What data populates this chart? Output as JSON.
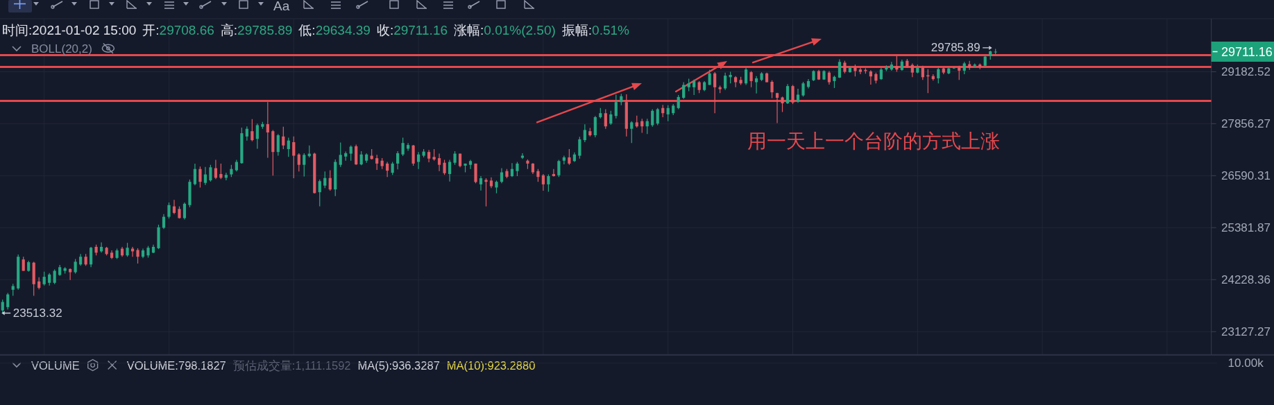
{
  "chart_data": [
    {
      "type": "candlestick",
      "categories": [
        null,
        null,
        null,
        null,
        null,
        null,
        null,
        null,
        null,
        null,
        null,
        null,
        null,
        null,
        null,
        null,
        null,
        null,
        null,
        null,
        null,
        null,
        null,
        null,
        null,
        null,
        null,
        null,
        null,
        null,
        null,
        null,
        null,
        null,
        null,
        null,
        null,
        null,
        null,
        null,
        null,
        null,
        null,
        null,
        null,
        null,
        null,
        null,
        null,
        null,
        null,
        null,
        null,
        null,
        null,
        null,
        null,
        null,
        null,
        null,
        null,
        null,
        null,
        null,
        null,
        null,
        null,
        null,
        null,
        null,
        null,
        null,
        null,
        null,
        null,
        null,
        null,
        null,
        null,
        null,
        null,
        null,
        null,
        null,
        null,
        null,
        null,
        null,
        null,
        null,
        null,
        null,
        null,
        null,
        null,
        null,
        null,
        null,
        null,
        null,
        null,
        null,
        null,
        null,
        null,
        null,
        null,
        null,
        null,
        null,
        null,
        null,
        null,
        null,
        null,
        null,
        null,
        null,
        null,
        null,
        null,
        null,
        null,
        null,
        null,
        null,
        null,
        null,
        null,
        null,
        null,
        null,
        null,
        null,
        null,
        null,
        null,
        null,
        null,
        null,
        null,
        null,
        null,
        null,
        null,
        null,
        null,
        null,
        null,
        null,
        null,
        null,
        null,
        null,
        null,
        null,
        null,
        null,
        null,
        null,
        null,
        null,
        null,
        null,
        null,
        null,
        null,
        null,
        null,
        null,
        null,
        null,
        null,
        null,
        null,
        null,
        null,
        null,
        null,
        null,
        null,
        null,
        null,
        null,
        null,
        null,
        null,
        null,
        null,
        null,
        null,
        null,
        null,
        null,
        null,
        null,
        null,
        null,
        null,
        null,
        null,
        null,
        null,
        null,
        null,
        null,
        null,
        null,
        null,
        null,
        null,
        null,
        null,
        null,
        null,
        null,
        null,
        null,
        null,
        null,
        null,
        null,
        null,
        null,
        null,
        null,
        null,
        null,
        null,
        null,
        null,
        null,
        null
      ],
      "ohlc": [
        [
          23570,
          23800,
          23513.32,
          23750
        ],
        [
          23640,
          23940,
          23590,
          23910
        ],
        [
          24010,
          24140,
          23880,
          24090
        ],
        [
          24040,
          24780,
          24010,
          24730
        ],
        [
          24670,
          24730,
          24420,
          24420
        ],
        [
          24420,
          24640,
          24400,
          24610
        ],
        [
          24600,
          24620,
          23880,
          24130
        ],
        [
          24190,
          24280,
          24020,
          24050
        ],
        [
          24130,
          24400,
          24100,
          24290
        ],
        [
          24160,
          24370,
          24100,
          24340
        ],
        [
          24160,
          24450,
          24130,
          24420
        ],
        [
          24330,
          24550,
          24310,
          24500
        ],
        [
          24420,
          24500,
          24360,
          24475
        ],
        [
          24460,
          24475,
          24220,
          24390
        ],
        [
          24390,
          24680,
          24360,
          24620
        ],
        [
          24560,
          24790,
          24530,
          24730
        ],
        [
          24730,
          24790,
          24530,
          24560
        ],
        [
          24560,
          24950,
          24500,
          24930
        ],
        [
          24950,
          25000,
          24760,
          24820
        ],
        [
          24850,
          25050,
          24820,
          24950
        ],
        [
          24930,
          24950,
          24760,
          24790
        ],
        [
          24820,
          24870,
          24680,
          24705
        ],
        [
          24705,
          24910,
          24680,
          24870
        ],
        [
          24910,
          24950,
          24730,
          24760
        ],
        [
          24760,
          25040,
          24730,
          24930
        ],
        [
          24910,
          24950,
          24730,
          24850
        ],
        [
          24880,
          24920,
          24580,
          24730
        ],
        [
          24730,
          24910,
          24700,
          24870
        ],
        [
          24760,
          24970,
          24710,
          24930
        ],
        [
          24820,
          25000,
          24810,
          24950
        ],
        [
          24920,
          25450,
          24900,
          25390
        ],
        [
          25380,
          25690,
          25350,
          25630
        ],
        [
          25630,
          25960,
          25590,
          25900
        ],
        [
          25870,
          26020,
          25690,
          25720
        ],
        [
          25810,
          25870,
          25590,
          25600
        ],
        [
          25600,
          25960,
          25570,
          25930
        ],
        [
          25900,
          26500,
          25850,
          26445
        ],
        [
          26390,
          26880,
          26360,
          26750
        ],
        [
          26750,
          26810,
          26310,
          26445
        ],
        [
          26420,
          26800,
          26370,
          26620
        ],
        [
          26480,
          26850,
          26450,
          26790
        ],
        [
          26770,
          26970,
          26510,
          26540
        ],
        [
          26630,
          26880,
          26510,
          26540
        ],
        [
          26540,
          26660,
          26480,
          26610
        ],
        [
          26620,
          26850,
          26560,
          26750
        ],
        [
          26720,
          26970,
          26690,
          26920
        ],
        [
          26890,
          27760,
          26880,
          27620
        ],
        [
          27540,
          27790,
          27440,
          27730
        ],
        [
          27670,
          27970,
          27420,
          27450
        ],
        [
          27480,
          27860,
          27240,
          27820
        ],
        [
          27780,
          27900,
          27730,
          27845
        ],
        [
          27845,
          28400,
          27020,
          27640
        ],
        [
          27670,
          27700,
          26590,
          27160
        ],
        [
          27160,
          27600,
          27070,
          27570
        ],
        [
          27540,
          27780,
          27230,
          27320
        ],
        [
          27230,
          27510,
          27040,
          27440
        ],
        [
          27400,
          27540,
          26530,
          27070
        ],
        [
          27100,
          27130,
          26690,
          26850
        ],
        [
          26850,
          27130,
          26570,
          27090
        ],
        [
          27060,
          27320,
          27030,
          27120
        ],
        [
          27120,
          27140,
          26170,
          26180
        ],
        [
          26200,
          26500,
          25870,
          26460
        ],
        [
          26355,
          26690,
          26295,
          26535
        ],
        [
          26535,
          26720,
          26235,
          26265
        ],
        [
          26265,
          26980,
          26110,
          26920
        ],
        [
          26850,
          27390,
          26800,
          27090
        ],
        [
          27050,
          27170,
          26950,
          27130
        ],
        [
          27120,
          27320,
          26950,
          27290
        ],
        [
          27300,
          27340,
          26850,
          26860
        ],
        [
          26860,
          27180,
          26840,
          27100
        ],
        [
          26950,
          27130,
          26900,
          27100
        ],
        [
          27070,
          27230,
          26980,
          26990
        ],
        [
          27010,
          27090,
          26730,
          26880
        ],
        [
          26950,
          27010,
          26750,
          26820
        ],
        [
          26880,
          26920,
          26560,
          26710
        ],
        [
          26660,
          26920,
          26610,
          26880
        ],
        [
          26880,
          27180,
          26740,
          27130
        ],
        [
          27100,
          27510,
          27060,
          27380
        ],
        [
          27240,
          27380,
          27190,
          27330
        ],
        [
          27320,
          27330,
          26830,
          26880
        ],
        [
          26920,
          27160,
          26750,
          27100
        ],
        [
          27070,
          27230,
          27030,
          27170
        ],
        [
          27160,
          27210,
          26910,
          27000
        ],
        [
          27040,
          27230,
          26950,
          26980
        ],
        [
          27010,
          27120,
          26700,
          26850
        ],
        [
          26900,
          26970,
          26610,
          26650
        ],
        [
          26630,
          26970,
          26450,
          26920
        ],
        [
          26900,
          27180,
          26850,
          27120
        ],
        [
          27120,
          27120,
          26790,
          26820
        ],
        [
          26830,
          26880,
          26670,
          26880
        ],
        [
          26850,
          26970,
          26750,
          26940
        ],
        [
          26880,
          26880,
          26410,
          26440
        ],
        [
          26385,
          26580,
          26240,
          26530
        ],
        [
          26490,
          26530,
          25870,
          26445
        ],
        [
          26475,
          26550,
          26295,
          26340
        ],
        [
          26310,
          26475,
          26175,
          26445
        ],
        [
          26445,
          26770,
          26410,
          26670
        ],
        [
          26700,
          26750,
          26530,
          26565
        ],
        [
          26580,
          26890,
          26560,
          26750
        ],
        [
          26700,
          26920,
          26580,
          26880
        ],
        [
          27020,
          27130,
          26990,
          27070
        ],
        [
          26950,
          26980,
          26750,
          26880
        ],
        [
          26880,
          26890,
          26630,
          26670
        ],
        [
          26700,
          26750,
          26445,
          26560
        ],
        [
          26600,
          26630,
          26235,
          26385
        ],
        [
          26385,
          26620,
          26210,
          26580
        ],
        [
          26630,
          26750,
          26570,
          26580
        ],
        [
          26600,
          26970,
          26560,
          26940
        ],
        [
          26950,
          27070,
          26860,
          27030
        ],
        [
          27030,
          27230,
          26850,
          26880
        ],
        [
          26940,
          27150,
          26920,
          27100
        ],
        [
          27070,
          27530,
          27000,
          27470
        ],
        [
          27450,
          27840,
          27400,
          27700
        ],
        [
          27670,
          27750,
          27540,
          27570
        ],
        [
          27570,
          28050,
          27520,
          28020
        ],
        [
          28020,
          28250,
          27990,
          28120
        ],
        [
          28120,
          28220,
          27730,
          27790
        ],
        [
          27860,
          28180,
          27830,
          28090
        ],
        [
          28050,
          28590,
          27990,
          28400
        ],
        [
          28400,
          28610,
          28320,
          28550
        ],
        [
          28400,
          28600,
          27540,
          27730
        ],
        [
          27730,
          27920,
          27380,
          27890
        ],
        [
          27890,
          28060,
          27760,
          27790
        ],
        [
          27920,
          27980,
          27630,
          27790
        ],
        [
          27790,
          27980,
          27600,
          27920
        ],
        [
          27820,
          28220,
          27780,
          28180
        ],
        [
          27860,
          28250,
          27820,
          28220
        ],
        [
          28250,
          28330,
          28020,
          28120
        ],
        [
          28090,
          28320,
          27920,
          28250
        ],
        [
          28120,
          28350,
          28070,
          28310
        ],
        [
          28250,
          28580,
          28220,
          28530
        ],
        [
          28510,
          28910,
          28480,
          28840
        ],
        [
          28780,
          29000,
          28680,
          28880
        ],
        [
          28780,
          28980,
          28580,
          28940
        ],
        [
          28910,
          28940,
          28630,
          28710
        ],
        [
          28710,
          28940,
          28680,
          28910
        ],
        [
          28840,
          29230,
          28840,
          29140
        ],
        [
          29140,
          29170,
          28120,
          28780
        ],
        [
          28780,
          28820,
          28630,
          28730
        ],
        [
          28750,
          29160,
          28710,
          29080
        ],
        [
          29040,
          29180,
          28880,
          29100
        ],
        [
          29040,
          29070,
          28780,
          28910
        ],
        [
          28970,
          29050,
          28840,
          28880
        ],
        [
          28880,
          29290,
          28840,
          29240
        ],
        [
          29170,
          29200,
          28780,
          28940
        ],
        [
          28910,
          29070,
          28620,
          29010
        ],
        [
          28970,
          29170,
          28940,
          29140
        ],
        [
          29140,
          29160,
          28910,
          28910
        ],
        [
          28920,
          28960,
          28500,
          28650
        ],
        [
          28630,
          28640,
          27870,
          28510
        ],
        [
          28520,
          28540,
          28150,
          28370
        ],
        [
          28370,
          28860,
          28350,
          28810
        ],
        [
          28810,
          28840,
          28350,
          28390
        ],
        [
          28410,
          28740,
          28380,
          28590
        ],
        [
          28570,
          28920,
          28540,
          28880
        ],
        [
          28790,
          28990,
          28750,
          28940
        ],
        [
          28960,
          29220,
          28940,
          29200
        ],
        [
          29200,
          29230,
          28970,
          28980
        ],
        [
          28980,
          29220,
          28970,
          29200
        ],
        [
          29160,
          29200,
          28850,
          28910
        ],
        [
          28940,
          29080,
          28760,
          29050
        ],
        [
          29030,
          29510,
          29020,
          29440
        ],
        [
          29420,
          29470,
          29140,
          29180
        ],
        [
          29170,
          29320,
          29160,
          29290
        ],
        [
          29290,
          29370,
          29060,
          29200
        ],
        [
          29240,
          29290,
          29120,
          29180
        ],
        [
          29230,
          29270,
          29130,
          29200
        ],
        [
          29190,
          29220,
          28850,
          29060
        ],
        [
          29120,
          29160,
          28880,
          28950
        ],
        [
          28990,
          29280,
          28970,
          29240
        ],
        [
          29240,
          29350,
          29200,
          29290
        ],
        [
          29240,
          29440,
          29210,
          29370
        ],
        [
          29320,
          29600,
          29180,
          29240
        ],
        [
          29230,
          29500,
          29210,
          29450
        ],
        [
          29470,
          29520,
          29280,
          29320
        ],
        [
          29360,
          29400,
          29040,
          29160
        ],
        [
          29160,
          29370,
          29140,
          29290
        ],
        [
          29290,
          29340,
          28970,
          29040
        ],
        [
          29090,
          29250,
          28630,
          29060
        ],
        [
          29070,
          29120,
          28950,
          28990
        ],
        [
          29010,
          29290,
          28880,
          29250
        ],
        [
          29270,
          29290,
          29120,
          29160
        ],
        [
          29140,
          29290,
          29120,
          29270
        ],
        [
          29270,
          29310,
          29260,
          29290
        ],
        [
          29290,
          29340,
          28970,
          29210
        ],
        [
          29210,
          29440,
          29120,
          29400
        ],
        [
          29380,
          29470,
          29230,
          29290
        ],
        [
          29340,
          29400,
          29290,
          29370
        ],
        [
          29370,
          29400,
          29250,
          29310
        ],
        [
          29340,
          29600,
          29320,
          29580
        ],
        [
          29610,
          29740,
          29500,
          29720
        ],
        [
          29708.66,
          29785.89,
          29634.39,
          29711.16
        ],
        null,
        null,
        null,
        null,
        null,
        null,
        null,
        null,
        null,
        null,
        null,
        null,
        null,
        null,
        null,
        null,
        null,
        null,
        null,
        null,
        null,
        null,
        null,
        null,
        null,
        null,
        null,
        null,
        null,
        null,
        null,
        null,
        null,
        null,
        null,
        null,
        null,
        null,
        null,
        null,
        null
      ],
      "colors": [
        "#26a983",
        "#26a983",
        "#26a983",
        "#26a983",
        "#e15b64",
        "#26a983",
        "#e15b64",
        "#e15b64",
        "#26a983",
        "#26a983",
        "#26a983",
        "#26a983",
        "#26a983",
        "#e15b64",
        "#26a983",
        "#26a983",
        "#e15b64",
        "#26a983",
        "#e15b64",
        "#26a983",
        "#e15b64",
        "#e15b64",
        "#26a983",
        "#e15b64",
        "#26a983",
        "#e15b64",
        "#e15b64",
        "#26a983",
        "#26a983",
        "#26a983",
        "#26a983",
        "#26a983",
        "#26a983",
        "#e15b64",
        "#e15b64",
        "#26a983",
        "#26a983",
        "#26a983",
        "#e15b64",
        "#26a983",
        "#26a983",
        "#e15b64",
        "#e15b64",
        "#26a983",
        "#26a983",
        "#26a983",
        "#26a983",
        "#26a983",
        "#e15b64",
        "#26a983",
        "#26a983",
        "#e15b64",
        "#e15b64",
        "#26a983",
        "#e15b64",
        "#26a983",
        "#e15b64",
        "#e15b64",
        "#26a983",
        "#26a983",
        "#e15b64",
        "#26a983",
        "#26a983",
        "#e15b64",
        "#26a983",
        "#26a983",
        "#26a983",
        "#26a983",
        "#e15b64",
        "#26a983",
        "#26a983",
        "#e15b64",
        "#e15b64",
        "#e15b64",
        "#e15b64",
        "#26a983",
        "#26a983",
        "#26a983",
        "#26a983",
        "#e15b64",
        "#26a983",
        "#26a983",
        "#e15b64",
        "#e15b64",
        "#e15b64",
        "#e15b64",
        "#26a983",
        "#26a983",
        "#e15b64",
        "#26a983",
        "#26a983",
        "#e15b64",
        "#26a983",
        "#e15b64",
        "#e15b64",
        "#26a983",
        "#26a983",
        "#e15b64",
        "#26a983",
        "#26a983",
        "#26a983",
        "#e15b64",
        "#e15b64",
        "#e15b64",
        "#e15b64",
        "#26a983",
        "#e15b64",
        "#26a983",
        "#26a983",
        "#e15b64",
        "#26a983",
        "#26a983",
        "#26a983",
        "#e15b64",
        "#26a983",
        "#26a983",
        "#e15b64",
        "#26a983",
        "#26a983",
        "#26a983",
        "#e15b64",
        "#26a983",
        "#e15b64",
        "#e15b64",
        "#26a983",
        "#26a983",
        "#26a983",
        "#e15b64",
        "#26a983",
        "#26a983",
        "#26a983",
        "#26a983",
        "#26a983",
        "#26a983",
        "#e15b64",
        "#26a983",
        "#26a983",
        "#e15b64",
        "#e15b64",
        "#26a983",
        "#26a983",
        "#e15b64",
        "#e15b64",
        "#26a983",
        "#e15b64",
        "#26a983",
        "#26a983",
        "#e15b64",
        "#e15b64",
        "#e15b64",
        "#e15b64",
        "#26a983",
        "#e15b64",
        "#26a983",
        "#26a983",
        "#26a983",
        "#26a983",
        "#e15b64",
        "#26a983",
        "#e15b64",
        "#26a983",
        "#26a983",
        "#e15b64",
        "#26a983",
        "#e15b64",
        "#e15b64",
        "#e15b64",
        "#e15b64",
        "#e15b64",
        "#26a983",
        "#26a983",
        "#26a983",
        "#e15b64",
        "#26a983",
        "#e15b64",
        "#e15b64",
        "#26a983",
        "#e15b64",
        "#e15b64",
        "#e15b64",
        "#26a983",
        "#e15b64",
        "#26a983",
        "#26a983",
        "#e15b64",
        "#26a983",
        "#e15b64",
        "#26a983",
        "#e15b64",
        "#26a983",
        "#26a983",
        "#26a983",
        null,
        null,
        null,
        null,
        null,
        null,
        null,
        null,
        null,
        null,
        null,
        null,
        null,
        null,
        null,
        null,
        null,
        null,
        null,
        null,
        null,
        null,
        null,
        null,
        null,
        null,
        null,
        null,
        null,
        null,
        null,
        null,
        null,
        null,
        null,
        null,
        null,
        null,
        null,
        null,
        null
      ],
      "ylim": [
        22650,
        30600
      ],
      "yticks": [
        23127.27,
        24228.36,
        25381.87,
        26590.31,
        27856.27,
        29182.52
      ],
      "log": true,
      "grid": true,
      "ref_lines": [
        {
          "axis": "y",
          "value": 29620,
          "color": "#e5484d"
        },
        {
          "axis": "y",
          "value": 29310,
          "color": "#e5484d"
        },
        {
          "axis": "y",
          "value": 28430,
          "color": "#e5484d"
        }
      ],
      "annotations": [
        "时间:2021-01-02 15:00",
        "开:",
        "29708.66",
        "高:",
        "29785.89",
        "低:",
        "29634.39",
        "收:",
        "29711.16",
        "涨幅:",
        "0.01%(2.50)",
        "振幅:",
        "0.51%",
        "BOLL(20,2)",
        "Aa",
        "用一天上一个台阶的方式上涨",
        "29785.89",
        "23513.32",
        "29711.16"
      ]
    },
    {
      "type": "other",
      "annotations": [
        "VOLUME",
        "VOLUME:798.1827",
        "预估成交量:1,111.1592",
        "MA(5):936.3287",
        "MA(10):923.2880",
        "10.00k"
      ]
    }
  ]
}
